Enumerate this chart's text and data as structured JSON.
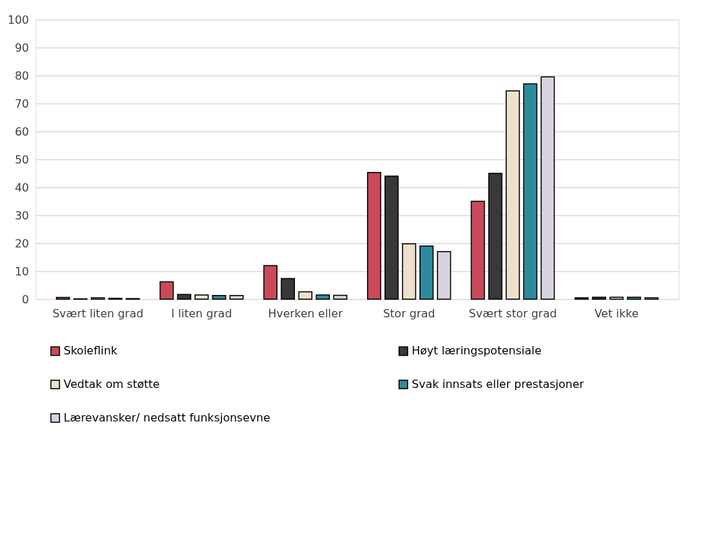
{
  "chart_data": {
    "type": "bar",
    "categories": [
      "Svært liten grad",
      "I liten grad",
      "Hverken eller",
      "Stor grad",
      "Svært stor grad",
      "Vet ikke"
    ],
    "series": [
      {
        "name": "Skoleflink",
        "color": "#c84a5a",
        "values": [
          0.6,
          6.2,
          12,
          45.3,
          35,
          0.5
        ]
      },
      {
        "name": "Høyt læringspotensiale",
        "color": "#383838",
        "values": [
          0.1,
          1.7,
          7.4,
          44,
          45,
          0.7
        ]
      },
      {
        "name": "Vedtak om støtte",
        "color": "#ede1ce",
        "values": [
          0.5,
          1.5,
          2.6,
          19.8,
          74.5,
          0.7
        ]
      },
      {
        "name": "Svak innsats eller prestasjoner",
        "color": "#2e8b9c",
        "values": [
          0.3,
          1.3,
          1.5,
          19,
          77,
          0.7
        ]
      },
      {
        "name": "Lærevansker/ nedsatt funksjonsevne",
        "color": "#d9d2e2",
        "values": [
          0.2,
          1.3,
          1.4,
          17,
          79.5,
          0.5
        ]
      }
    ],
    "ylim": [
      0,
      100
    ],
    "yticks": [
      0,
      10,
      20,
      30,
      40,
      50,
      60,
      70,
      80,
      90,
      100
    ],
    "grid": "y",
    "legend": "bottom"
  }
}
